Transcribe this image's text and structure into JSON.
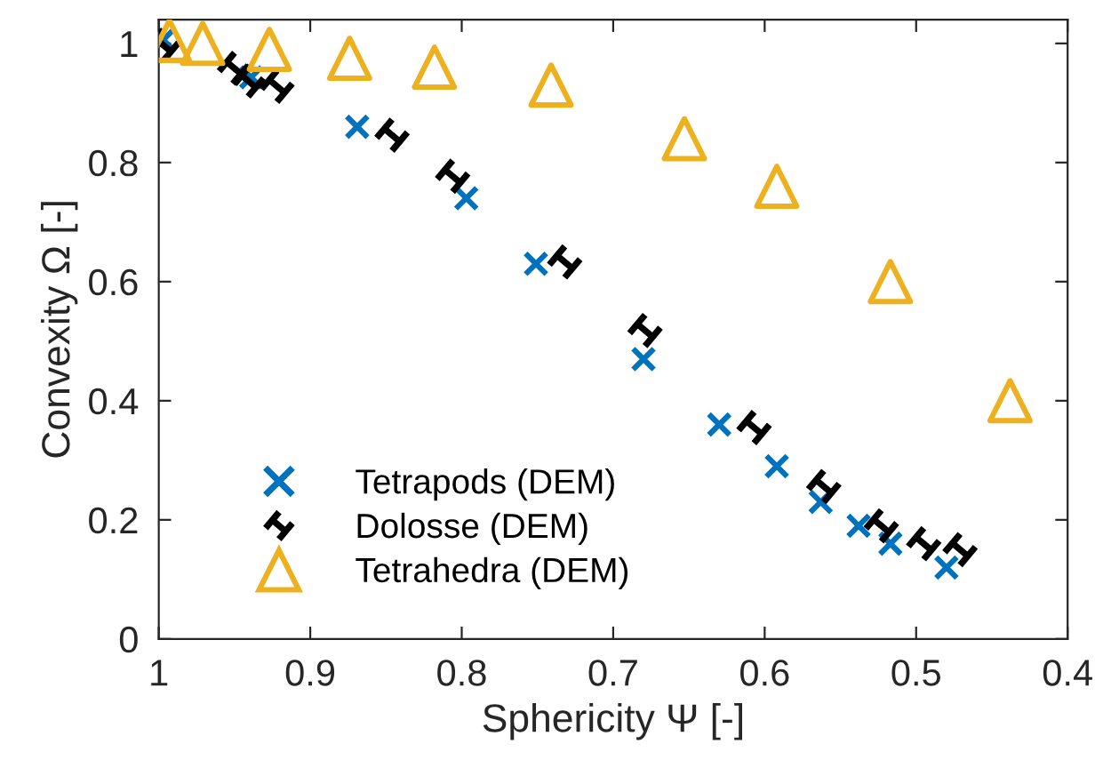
{
  "chart_data": {
    "type": "scatter",
    "xlabel": "Sphericity Ψ [-]",
    "ylabel": "Convexity Ω [-]",
    "xlim": [
      1,
      0.4
    ],
    "xticks": [
      1,
      0.9,
      0.8,
      0.7,
      0.6,
      0.5,
      0.4
    ],
    "ylim": [
      0,
      1.04
    ],
    "yticks": [
      0,
      0.2,
      0.4,
      0.6,
      0.8,
      1
    ],
    "grid": false,
    "legend": "bottom left",
    "series": [
      {
        "name": "Tetrapods (DEM)",
        "color": "#0072bd",
        "marker": "cross",
        "x": [
          0.997,
          0.939,
          0.869,
          0.797,
          0.751,
          0.68,
          0.63,
          0.592,
          0.563,
          0.538,
          0.517,
          0.48
        ],
        "values": [
          1.006,
          0.943,
          0.86,
          0.74,
          0.63,
          0.47,
          0.36,
          0.29,
          0.23,
          0.19,
          0.16,
          0.12
        ]
      },
      {
        "name": "Dolosse (DEM)",
        "color": "#000000",
        "x": [
          0.997,
          0.95,
          0.941,
          0.922,
          0.846,
          0.806,
          0.732,
          0.679,
          0.607,
          0.561,
          0.523,
          0.495,
          0.471
        ],
        "values": [
          0.997,
          0.958,
          0.937,
          0.928,
          0.846,
          0.777,
          0.633,
          0.518,
          0.355,
          0.256,
          0.19,
          0.16,
          0.15
        ]
      },
      {
        "name": "Tetrahedra (DEM)",
        "color": "#edb120",
        "marker": "triangle",
        "x": [
          0.993,
          0.971,
          0.927,
          0.874,
          0.818,
          0.741,
          0.653,
          0.592,
          0.517,
          0.438
        ],
        "values": [
          1.005,
          1.0,
          0.99,
          0.975,
          0.96,
          0.93,
          0.84,
          0.76,
          0.6,
          0.4
        ]
      }
    ]
  }
}
